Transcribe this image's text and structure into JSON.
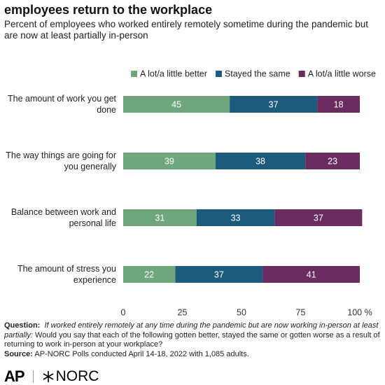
{
  "chart_data": {
    "type": "stacked-bar-horizontal",
    "title": "employees return to the workplace",
    "subtitle": "Percent of employees who worked entirely remotely sometime during the pandemic but are now at least partially in-person",
    "categories": [
      "The amount of work you get done",
      "The way things are going for you generally",
      "Balance between work and personal life",
      "The amount of stress you experience"
    ],
    "series": [
      {
        "name": "A lot/a little better",
        "color": "#6fa67c",
        "values": [
          45,
          39,
          31,
          22
        ]
      },
      {
        "name": "Stayed the same",
        "color": "#1c5b7c",
        "values": [
          37,
          38,
          33,
          37
        ]
      },
      {
        "name": "A lot/a little worse",
        "color": "#6a2c5f",
        "values": [
          18,
          23,
          37,
          41
        ]
      }
    ],
    "xlim": [
      0,
      100
    ],
    "xticks": [
      0,
      25,
      50,
      75,
      {
        "value": 100,
        "label": "100 %"
      }
    ],
    "legend": "top-right",
    "grid": false
  },
  "footer": {
    "question_label": "Question:",
    "question_italic": "If worked entirely remotely at any time during the pandemic but are now working in-person at least partially:",
    "question_text": "Would you say that each of the following gotten better, stayed the same or gotten worse as a result of returning to work in-person at your workplace?",
    "source_label": "Source:",
    "source_text": "AP-NORC Polls conducted April 14-18, 2022 with 1,085 adults."
  },
  "logos": [
    "AP",
    "NORC"
  ]
}
